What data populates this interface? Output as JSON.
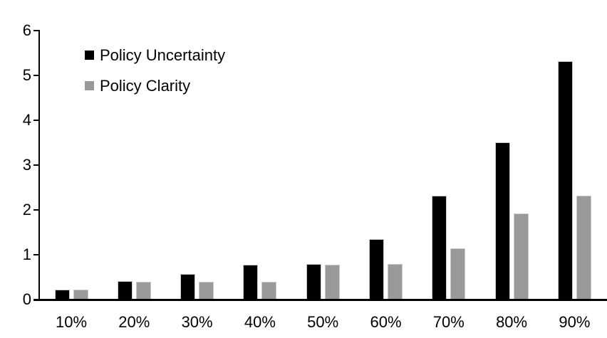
{
  "chart_data": {
    "type": "bar",
    "title": "",
    "xlabel": "",
    "ylabel": "",
    "categories": [
      "10%",
      "20%",
      "30%",
      "40%",
      "50%",
      "60%",
      "70%",
      "80%",
      "90%"
    ],
    "series": [
      {
        "name": "Policy Uncertainty",
        "color": "#000000",
        "values": [
          0.2,
          0.4,
          0.55,
          0.76,
          0.78,
          1.33,
          2.3,
          3.5,
          5.3
        ]
      },
      {
        "name": "Policy Clarity",
        "color": "#999999",
        "values": [
          0.2,
          0.38,
          0.38,
          0.38,
          0.76,
          0.77,
          1.13,
          1.9,
          2.3
        ]
      }
    ],
    "ylim": [
      0,
      6
    ],
    "yticks": [
      0,
      1,
      2,
      3,
      4,
      5,
      6
    ],
    "grid": false,
    "legend_position": "upper-left-inside",
    "background_color": "#ffffff",
    "axis_color": "#000000",
    "bar_border_color": "#c9c9c9"
  }
}
